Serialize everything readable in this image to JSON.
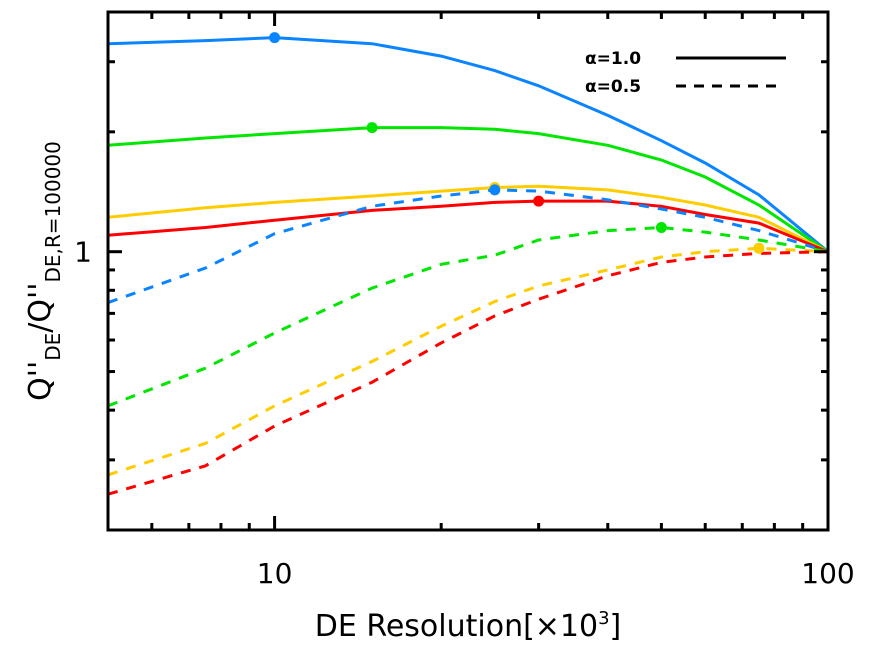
{
  "chart_data": {
    "type": "line",
    "xlabel": "DE Resolution[×10³]",
    "xlabel_parts": {
      "main": "DE Resolution[×10",
      "sup": "3",
      "end": "]"
    },
    "ylabel_parts": {
      "a": "Q''",
      "a_sub": "DE",
      "b": "/Q''",
      "b_sub": "DE,R=100000"
    },
    "x_scale": "log",
    "y_scale": "log",
    "xlim": [
      5,
      100
    ],
    "ylim": [
      0.2,
      4
    ],
    "x_ticks": [
      {
        "value": 10,
        "label": "10"
      },
      {
        "value": 100,
        "label": "100"
      }
    ],
    "y_ticks": [
      {
        "value": 1,
        "label": "1"
      }
    ],
    "grid": false,
    "legend_position": "top-right",
    "legend": [
      {
        "label": "α=1.0",
        "style": "solid"
      },
      {
        "label": "α=0.5",
        "style": "dashed"
      }
    ],
    "x": [
      5,
      7.5,
      10,
      15,
      20,
      25,
      30,
      40,
      50,
      60,
      75,
      100
    ],
    "series": [
      {
        "color": "#0a84ff",
        "style": "solid",
        "values": [
          3.33,
          3.39,
          3.45,
          3.33,
          3.1,
          2.85,
          2.61,
          2.2,
          1.9,
          1.67,
          1.39,
          1.0
        ],
        "marker": {
          "x": 10,
          "y": 3.45
        }
      },
      {
        "color": "#00e600",
        "style": "solid",
        "values": [
          1.85,
          1.93,
          1.98,
          2.05,
          2.05,
          2.03,
          1.98,
          1.85,
          1.7,
          1.54,
          1.31,
          1.0
        ],
        "marker": {
          "x": 15,
          "y": 2.05
        }
      },
      {
        "color": "#ffcc00",
        "style": "solid",
        "values": [
          1.22,
          1.29,
          1.33,
          1.38,
          1.42,
          1.45,
          1.46,
          1.43,
          1.37,
          1.31,
          1.22,
          1.0
        ],
        "marker": {
          "x": 25,
          "y": 1.45
        }
      },
      {
        "color": "#ff0000",
        "style": "solid",
        "values": [
          1.1,
          1.15,
          1.2,
          1.27,
          1.3,
          1.33,
          1.34,
          1.34,
          1.3,
          1.24,
          1.18,
          1.0
        ],
        "marker": {
          "x": 30,
          "y": 1.34
        }
      },
      {
        "color": "#0a84ff",
        "style": "dashed",
        "values": [
          0.745,
          0.91,
          1.11,
          1.3,
          1.38,
          1.43,
          1.42,
          1.35,
          1.28,
          1.22,
          1.13,
          1.0
        ],
        "marker": {
          "x": 25,
          "y": 1.43
        }
      },
      {
        "color": "#00e600",
        "style": "dashed",
        "values": [
          0.41,
          0.51,
          0.625,
          0.81,
          0.93,
          0.98,
          1.07,
          1.13,
          1.15,
          1.12,
          1.07,
          1.0
        ],
        "marker": {
          "x": 50,
          "y": 1.15
        }
      },
      {
        "color": "#ffcc00",
        "style": "dashed",
        "values": [
          0.275,
          0.33,
          0.41,
          0.53,
          0.65,
          0.75,
          0.82,
          0.9,
          0.97,
          1.0,
          1.02,
          1.0
        ],
        "marker": {
          "x": 75,
          "y": 1.02
        }
      },
      {
        "color": "#ff0000",
        "style": "dashed",
        "values": [
          0.246,
          0.29,
          0.365,
          0.47,
          0.59,
          0.69,
          0.76,
          0.87,
          0.94,
          0.97,
          0.99,
          1.0
        ]
      }
    ]
  }
}
